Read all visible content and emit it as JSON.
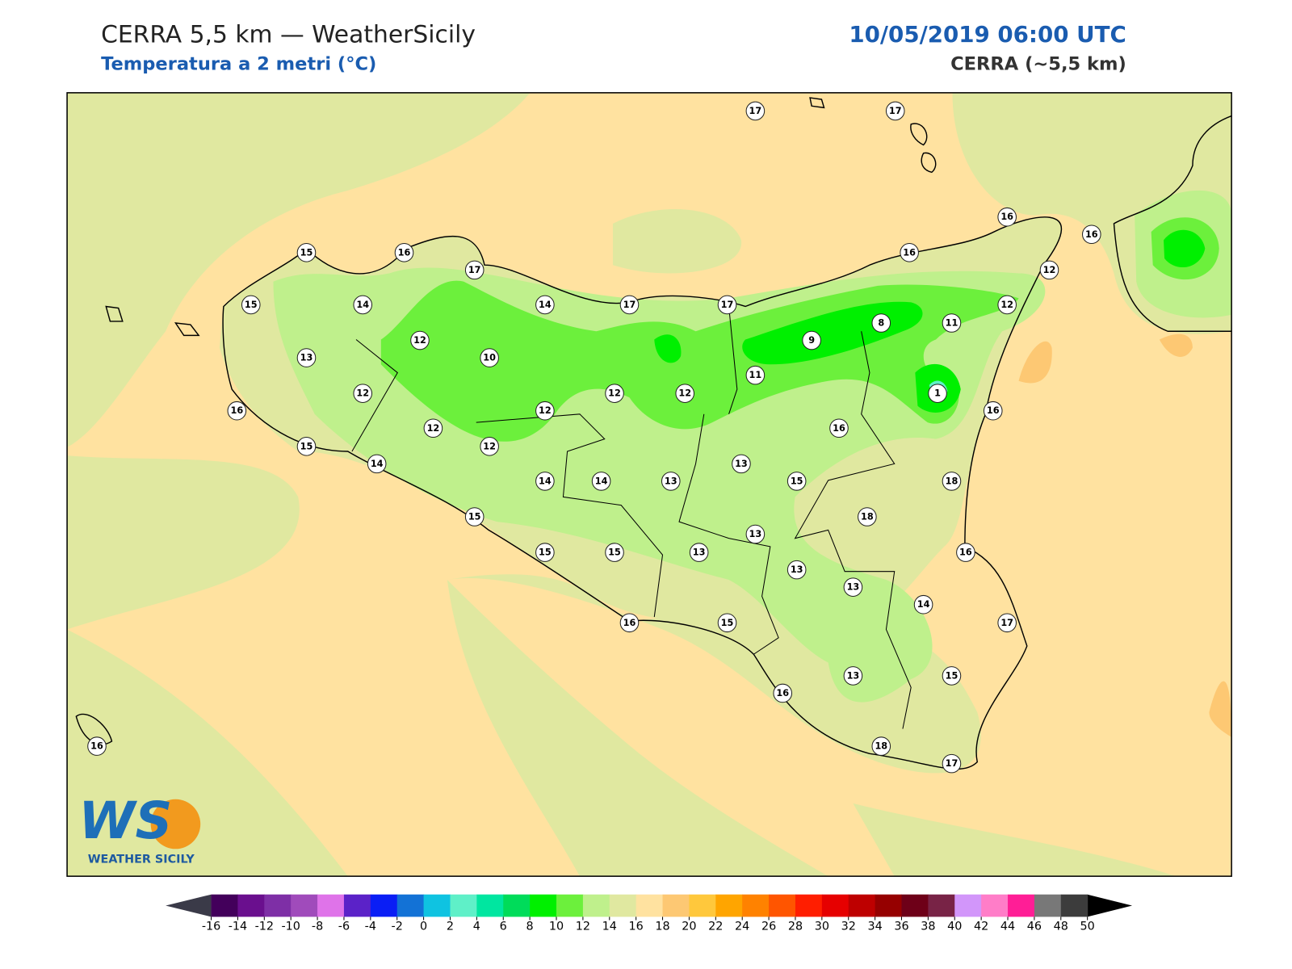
{
  "header": {
    "title": "CERRA 5,5 km — WeatherSicily",
    "subtitle": "Temperatura a 2 metri (°C)",
    "date": "10/05/2019 06:00 UTC",
    "model": "CERRA (~5,5 km)"
  },
  "stations": [
    17,
    17,
    16,
    16,
    15,
    16,
    17,
    16,
    12,
    15,
    14,
    14,
    17,
    17,
    12,
    8,
    11,
    12,
    10,
    9,
    13,
    11,
    12,
    12,
    12,
    1,
    16,
    12,
    16,
    12,
    16,
    15,
    12,
    13,
    14,
    14,
    14,
    13,
    15,
    18,
    18,
    15,
    13,
    15,
    15,
    13,
    16,
    13,
    13,
    14,
    16,
    15,
    17,
    16,
    13,
    15,
    16,
    18,
    17
  ],
  "colorbar": {
    "ticks": [
      -16,
      -14,
      -12,
      -10,
      -8,
      -6,
      -4,
      -2,
      0,
      2,
      4,
      6,
      8,
      10,
      12,
      14,
      16,
      18,
      20,
      22,
      24,
      26,
      28,
      30,
      32,
      34,
      36,
      38,
      40,
      42,
      44,
      46,
      48,
      50
    ],
    "colors": [
      "#43005b",
      "#6a0f8e",
      "#7e2fa6",
      "#a04bbb",
      "#df73e9",
      "#5b22c8",
      "#0a1ef5",
      "#1372d6",
      "#0fc3e1",
      "#5ff0c8",
      "#00e6a0",
      "#00dc5a",
      "#00f000",
      "#6cf03c",
      "#bff08c",
      "#e0e8a0",
      "#ffe2a0",
      "#fdc873",
      "#ffc83c",
      "#ffa500",
      "#ff8200",
      "#ff5500",
      "#ff1e00",
      "#e60000",
      "#be0000",
      "#960000",
      "#6e0018",
      "#782346",
      "#d296fa",
      "#ff7dc8",
      "#ff1e96",
      "#787878",
      "#3c3c3c"
    ],
    "under": "#3a3a48",
    "over": "#000000"
  },
  "logo": {
    "mark": "WS",
    "name": "WEATHER SICILY"
  }
}
